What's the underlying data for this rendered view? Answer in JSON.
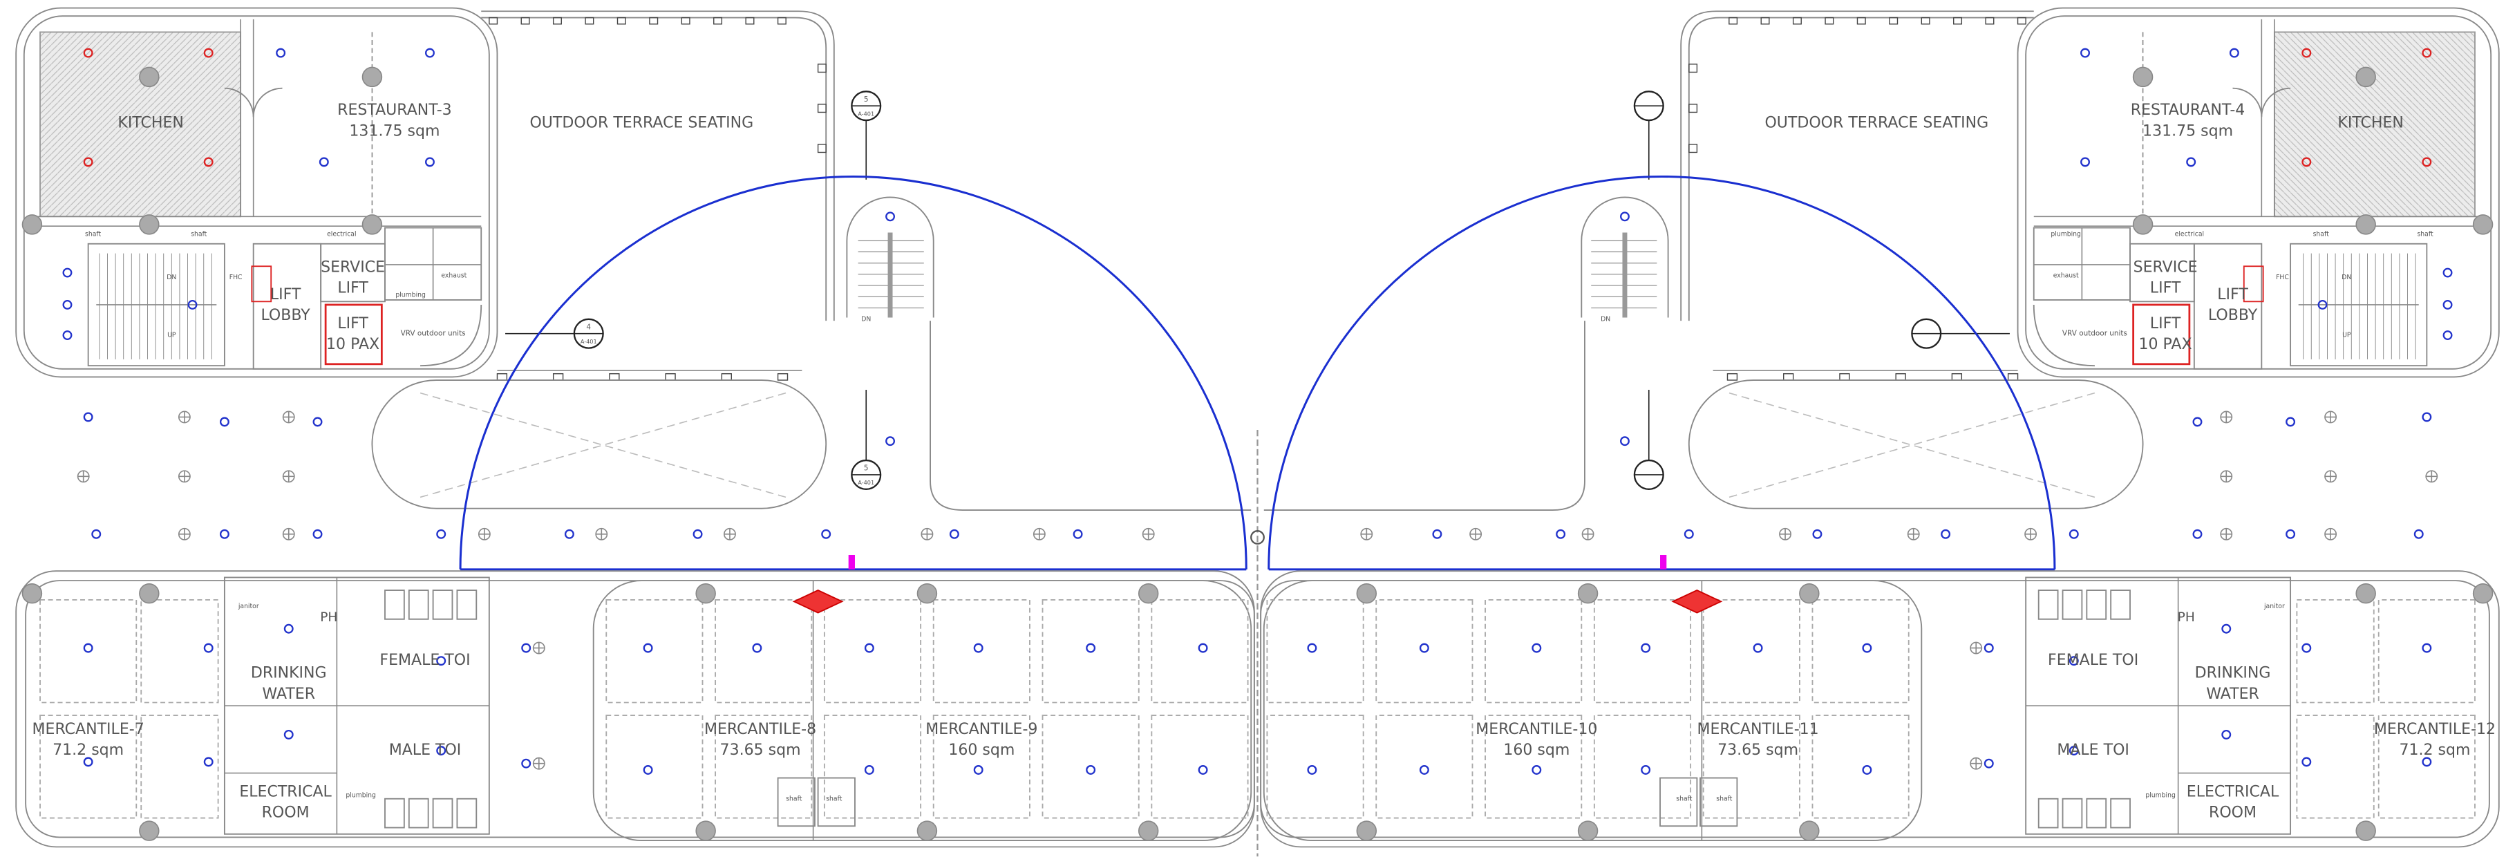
{
  "rooms": [
    {
      "lines": [
        "KITCHEN"
      ]
    },
    {
      "lines": [
        "RESTAURANT-3",
        "131.75 sqm"
      ]
    },
    {
      "lines": [
        "OUTDOOR TERRACE SEATING"
      ]
    },
    {
      "lines": [
        "OUTDOOR TERRACE SEATING"
      ]
    },
    {
      "lines": [
        "RESTAURANT-4",
        "131.75 sqm"
      ]
    },
    {
      "lines": [
        "KITCHEN"
      ]
    },
    {
      "lines": [
        "SERVICE",
        "LIFT"
      ]
    },
    {
      "lines": [
        "LIFT",
        "LOBBY"
      ]
    },
    {
      "lines": [
        "LIFT",
        "10 PAX"
      ]
    },
    {
      "lines": [
        "SERVICE",
        "LIFT"
      ]
    },
    {
      "lines": [
        "LIFT",
        "LOBBY"
      ]
    },
    {
      "lines": [
        "LIFT",
        "10 PAX"
      ]
    },
    {
      "lines": [
        "MERCANTILE-7",
        "71.2 sqm"
      ]
    },
    {
      "lines": [
        "DRINKING",
        "WATER"
      ]
    },
    {
      "lines": [
        "FEMALE TOI"
      ]
    },
    {
      "lines": [
        "MALE TOI"
      ]
    },
    {
      "lines": [
        "ELECTRICAL",
        "ROOM"
      ]
    },
    {
      "lines": [
        "MERCANTILE-8",
        "73.65 sqm"
      ]
    },
    {
      "lines": [
        "MERCANTILE-9",
        "160 sqm"
      ]
    },
    {
      "lines": [
        "MERCANTILE-10",
        "160 sqm"
      ]
    },
    {
      "lines": [
        "MERCANTILE-11",
        "73.65 sqm"
      ]
    },
    {
      "lines": [
        "FEMALE TOI"
      ]
    },
    {
      "lines": [
        "MALE TOI"
      ]
    },
    {
      "lines": [
        "DRINKING",
        "WATER"
      ]
    },
    {
      "lines": [
        "ELECTRICAL",
        "ROOM"
      ]
    },
    {
      "lines": [
        "MERCANTILE-12",
        "71.2 sqm"
      ]
    }
  ],
  "labels": [
    "shaft",
    "electrical",
    "janitor",
    "plumbing",
    "VRV outdoor units",
    "PH",
    "UP",
    "DN",
    "FHC",
    "A-401",
    "4",
    "5",
    "exhaust"
  ]
}
